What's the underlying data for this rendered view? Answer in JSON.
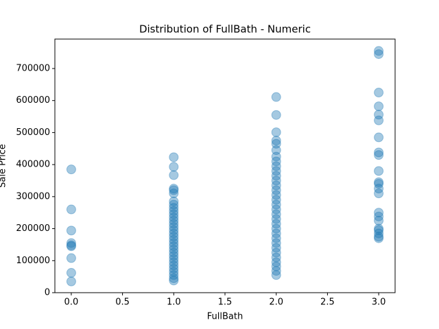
{
  "chart_data": {
    "type": "scatter",
    "title": "Distribution of FullBath - Numeric",
    "x_label": "FullBath",
    "y_label": "Sale Price",
    "color": "#1f77b4",
    "opacity": 0.4,
    "x": [
      0,
      0,
      0,
      0,
      0,
      0,
      0,
      0,
      0,
      1,
      1,
      1,
      1,
      1,
      1,
      1,
      1,
      1,
      1,
      1,
      1,
      1,
      1,
      1,
      1,
      1,
      1,
      1,
      1,
      1,
      1,
      1,
      1,
      1,
      1,
      1,
      1,
      1,
      1,
      1,
      1,
      2,
      2,
      2,
      2,
      2,
      2,
      2,
      2,
      2,
      2,
      2,
      2,
      2,
      2,
      2,
      2,
      2,
      2,
      2,
      2,
      2,
      2,
      2,
      2,
      2,
      2,
      2,
      2,
      2,
      2,
      2,
      2,
      3,
      3,
      3,
      3,
      3,
      3,
      3,
      3,
      3,
      3,
      3,
      3,
      3,
      3,
      3,
      3,
      3,
      3,
      3,
      3,
      3,
      3
    ],
    "values": [
      385000,
      260000,
      194000,
      155000,
      148000,
      145000,
      108000,
      62000,
      35000,
      423000,
      393000,
      367000,
      325000,
      320000,
      310000,
      285000,
      275000,
      265000,
      255000,
      245000,
      235000,
      225000,
      215000,
      205000,
      195000,
      185000,
      175000,
      165000,
      155000,
      145000,
      135000,
      125000,
      115000,
      105000,
      95000,
      85000,
      75000,
      65000,
      55000,
      45000,
      38000,
      611000,
      555000,
      501000,
      475000,
      465000,
      445000,
      425000,
      410000,
      395000,
      380000,
      365000,
      350000,
      335000,
      320000,
      305000,
      290000,
      275000,
      260000,
      245000,
      230000,
      215000,
      200000,
      185000,
      170000,
      155000,
      140000,
      125000,
      110000,
      95000,
      82000,
      68000,
      55000,
      755000,
      745000,
      625000,
      582000,
      556000,
      538000,
      485000,
      438000,
      430000,
      380000,
      345000,
      340000,
      325000,
      310000,
      250000,
      238000,
      225000,
      200000,
      195000,
      185000,
      175000,
      170000
    ],
    "xlim": [
      -0.16,
      3.16
    ],
    "ylim": [
      0,
      792000
    ],
    "xticks": [
      {
        "value": 0,
        "label": "0.0"
      },
      {
        "value": 0.5,
        "label": "0.5"
      },
      {
        "value": 1,
        "label": "1.0"
      },
      {
        "value": 1.5,
        "label": "1.5"
      },
      {
        "value": 2,
        "label": "2.0"
      },
      {
        "value": 2.5,
        "label": "2.5"
      },
      {
        "value": 3,
        "label": "3.0"
      }
    ],
    "yticks": [
      0,
      100000,
      200000,
      300000,
      400000,
      500000,
      600000,
      700000
    ]
  }
}
